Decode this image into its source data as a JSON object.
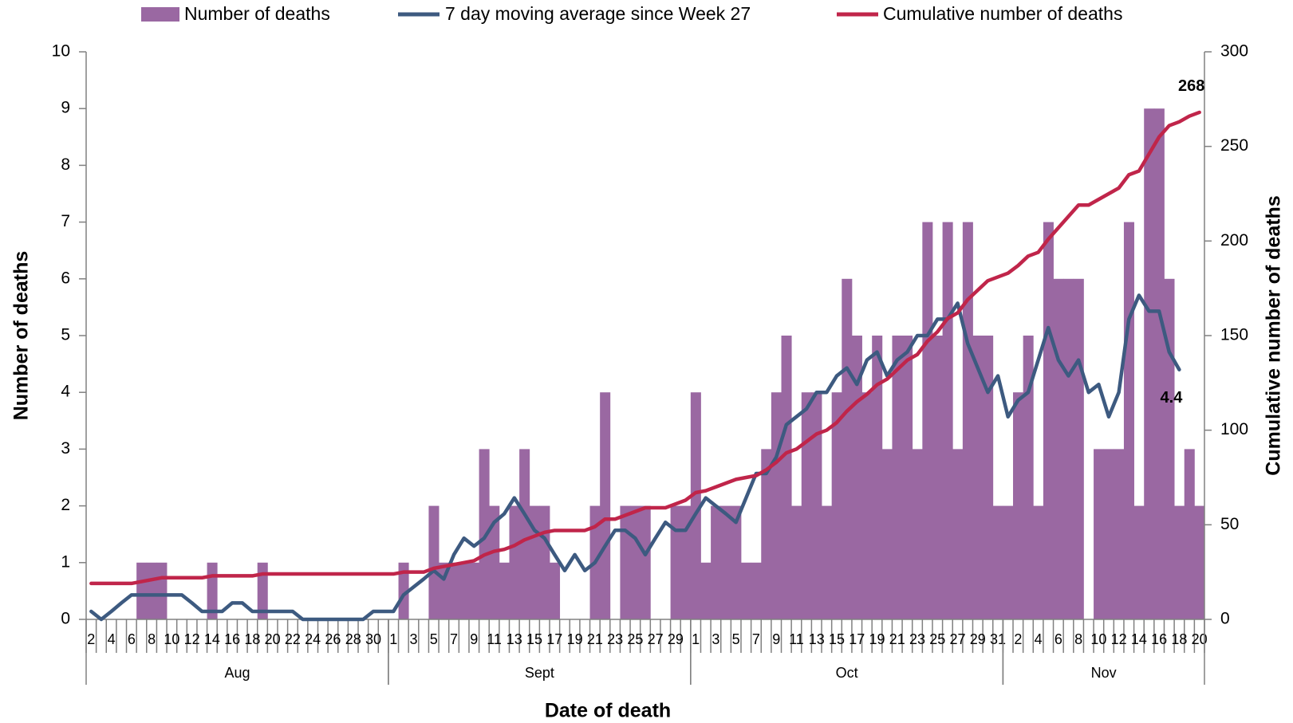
{
  "chart_data": {
    "type": "combo",
    "x_label": "Date of death",
    "y_label": "Number of deaths",
    "y2_label": "Cumulative number of deaths",
    "ylim": [
      0,
      10
    ],
    "yticks": [
      0,
      1,
      2,
      3,
      4,
      5,
      6,
      7,
      8,
      9,
      10
    ],
    "y2lim": [
      0,
      300
    ],
    "y2ticks": [
      0,
      50,
      100,
      150,
      200,
      250,
      300
    ],
    "grid": false,
    "legend": "top",
    "category_groups": [
      {
        "label": "Aug",
        "categories": [
          "2",
          null,
          "4",
          null,
          "6",
          null,
          "8",
          null,
          "10",
          null,
          "12",
          null,
          "14",
          null,
          "16",
          null,
          "18",
          null,
          "20",
          null,
          "22",
          null,
          "24",
          null,
          "26",
          null,
          "28",
          null,
          "30",
          null
        ]
      },
      {
        "label": "Sept",
        "categories": [
          "1",
          null,
          "3",
          null,
          "5",
          null,
          "7",
          null,
          "9",
          null,
          "11",
          null,
          "13",
          null,
          "15",
          null,
          "17",
          null,
          "19",
          null,
          "21",
          null,
          "23",
          null,
          "25",
          null,
          "27",
          null,
          "29",
          null
        ]
      },
      {
        "label": "Oct",
        "categories": [
          "1",
          null,
          "3",
          null,
          "5",
          null,
          "7",
          null,
          "9",
          null,
          "11",
          null,
          "13",
          null,
          "15",
          null,
          "17",
          null,
          "19",
          null,
          "21",
          null,
          "23",
          null,
          "25",
          null,
          "27",
          null,
          "29",
          null,
          "31"
        ]
      },
      {
        "label": "Nov",
        "categories": [
          null,
          "2",
          null,
          "4",
          null,
          "6",
          null,
          "8",
          null,
          "10",
          null,
          "12",
          null,
          "14",
          null,
          "16",
          null,
          "18",
          null,
          "20"
        ]
      }
    ],
    "series": [
      {
        "name": "Number of deaths",
        "type": "bar",
        "color": "#9a68a2",
        "values": [
          0,
          0,
          0,
          0,
          0,
          1,
          1,
          1,
          0,
          0,
          0,
          0,
          1,
          0,
          0,
          0,
          0,
          1,
          0,
          0,
          0,
          0,
          0,
          0,
          0,
          0,
          0,
          0,
          0,
          0,
          0,
          1,
          0,
          0,
          2,
          1,
          1,
          1,
          1,
          3,
          2,
          1,
          2,
          3,
          2,
          2,
          1,
          0,
          0,
          0,
          2,
          4,
          0,
          2,
          2,
          2,
          0,
          0,
          2,
          2,
          4,
          1,
          2,
          2,
          2,
          1,
          1,
          3,
          4,
          5,
          2,
          4,
          4,
          2,
          4,
          6,
          5,
          4,
          5,
          3,
          5,
          5,
          3,
          7,
          5,
          7,
          3,
          7,
          5,
          5,
          2,
          2,
          4,
          5,
          2,
          7,
          6,
          6,
          6,
          0,
          3,
          3,
          3,
          7,
          2,
          9,
          9,
          6,
          2,
          3,
          2
        ]
      },
      {
        "name": "7 day moving average since Week 27",
        "type": "line",
        "color": "#3d5a80",
        "values": [
          0.14,
          0,
          0.14,
          0.29,
          0.43,
          0.43,
          0.43,
          0.43,
          0.43,
          0.43,
          0.29,
          0.14,
          0.14,
          0.14,
          0.29,
          0.29,
          0.14,
          0.14,
          0.14,
          0.14,
          0.14,
          0,
          0,
          0,
          0,
          0,
          0,
          0,
          0.14,
          0.14,
          0.14,
          0.43,
          0.57,
          0.71,
          0.86,
          0.71,
          1.14,
          1.43,
          1.29,
          1.43,
          1.71,
          1.86,
          2.14,
          1.86,
          1.57,
          1.43,
          1.14,
          0.86,
          1.14,
          0.86,
          1.0,
          1.29,
          1.57,
          1.57,
          1.43,
          1.14,
          1.43,
          1.71,
          1.57,
          1.57,
          1.86,
          2.14,
          2.0,
          1.86,
          1.71,
          2.14,
          2.57,
          2.57,
          2.86,
          3.43,
          3.57,
          3.71,
          4.0,
          4.0,
          4.29,
          4.43,
          4.14,
          4.57,
          4.71,
          4.29,
          4.57,
          4.71,
          5.0,
          5.0,
          5.29,
          5.29,
          5.57,
          4.86,
          4.43,
          4.0,
          4.29,
          3.57,
          3.86,
          4.0,
          4.57,
          5.14,
          4.57,
          4.29,
          4.57,
          4.0,
          4.14,
          3.57,
          4.0,
          5.29,
          5.71,
          5.43,
          5.43,
          4.71,
          4.4,
          null,
          null
        ],
        "value_labels": [
          null,
          null,
          null,
          null,
          null,
          null,
          null,
          null,
          null,
          null,
          null,
          null,
          null,
          null,
          null,
          null,
          null,
          null,
          null,
          null,
          null,
          null,
          null,
          null,
          null,
          null,
          null,
          null,
          null,
          null,
          null,
          null,
          null,
          null,
          null,
          null,
          null,
          null,
          null,
          null,
          null,
          null,
          null,
          null,
          null,
          null,
          null,
          null,
          null,
          null,
          null,
          null,
          null,
          null,
          null,
          null,
          null,
          null,
          null,
          null,
          null,
          null,
          null,
          null,
          null,
          null,
          null,
          null,
          null,
          null,
          null,
          null,
          null,
          null,
          null,
          null,
          null,
          null,
          null,
          null,
          null,
          null,
          null,
          null,
          null,
          null,
          null,
          null,
          null,
          null,
          null,
          null,
          null,
          null,
          null,
          null,
          null,
          null,
          null,
          null,
          null,
          null,
          null,
          null,
          null,
          null,
          null,
          null,
          "4.4",
          null,
          null
        ]
      },
      {
        "name": "Cumulative number of deaths",
        "type": "line",
        "axis": "y2",
        "color": "#c0254a",
        "values": [
          19,
          19,
          19,
          19,
          19,
          20,
          21,
          22,
          22,
          22,
          22,
          22,
          23,
          23,
          23,
          23,
          23,
          24,
          24,
          24,
          24,
          24,
          24,
          24,
          24,
          24,
          24,
          24,
          24,
          24,
          24,
          25,
          25,
          25,
          27,
          28,
          29,
          30,
          31,
          34,
          36,
          37,
          39,
          42,
          44,
          46,
          47,
          47,
          47,
          47,
          49,
          53,
          53,
          55,
          57,
          59,
          59,
          59,
          61,
          63,
          67,
          68,
          70,
          72,
          74,
          75,
          76,
          79,
          83,
          88,
          90,
          94,
          98,
          100,
          104,
          110,
          115,
          119,
          124,
          127,
          132,
          137,
          140,
          147,
          152,
          159,
          162,
          169,
          174,
          179,
          181,
          183,
          187,
          192,
          194,
          201,
          207,
          213,
          219,
          219,
          222,
          225,
          228,
          235,
          237,
          246,
          255,
          261,
          263,
          266,
          268
        ],
        "value_labels": [
          null,
          null,
          null,
          null,
          null,
          null,
          null,
          null,
          null,
          null,
          null,
          null,
          null,
          null,
          null,
          null,
          null,
          null,
          null,
          null,
          null,
          null,
          null,
          null,
          null,
          null,
          null,
          null,
          null,
          null,
          null,
          null,
          null,
          null,
          null,
          null,
          null,
          null,
          null,
          null,
          null,
          null,
          null,
          null,
          null,
          null,
          null,
          null,
          null,
          null,
          null,
          null,
          null,
          null,
          null,
          null,
          null,
          null,
          null,
          null,
          null,
          null,
          null,
          null,
          null,
          null,
          null,
          null,
          null,
          null,
          null,
          null,
          null,
          null,
          null,
          null,
          null,
          null,
          null,
          null,
          null,
          null,
          null,
          null,
          null,
          null,
          null,
          null,
          null,
          null,
          null,
          null,
          null,
          null,
          null,
          null,
          null,
          null,
          null,
          null,
          null,
          null,
          null,
          null,
          null,
          null,
          null,
          null,
          null,
          null,
          "268"
        ]
      }
    ]
  }
}
